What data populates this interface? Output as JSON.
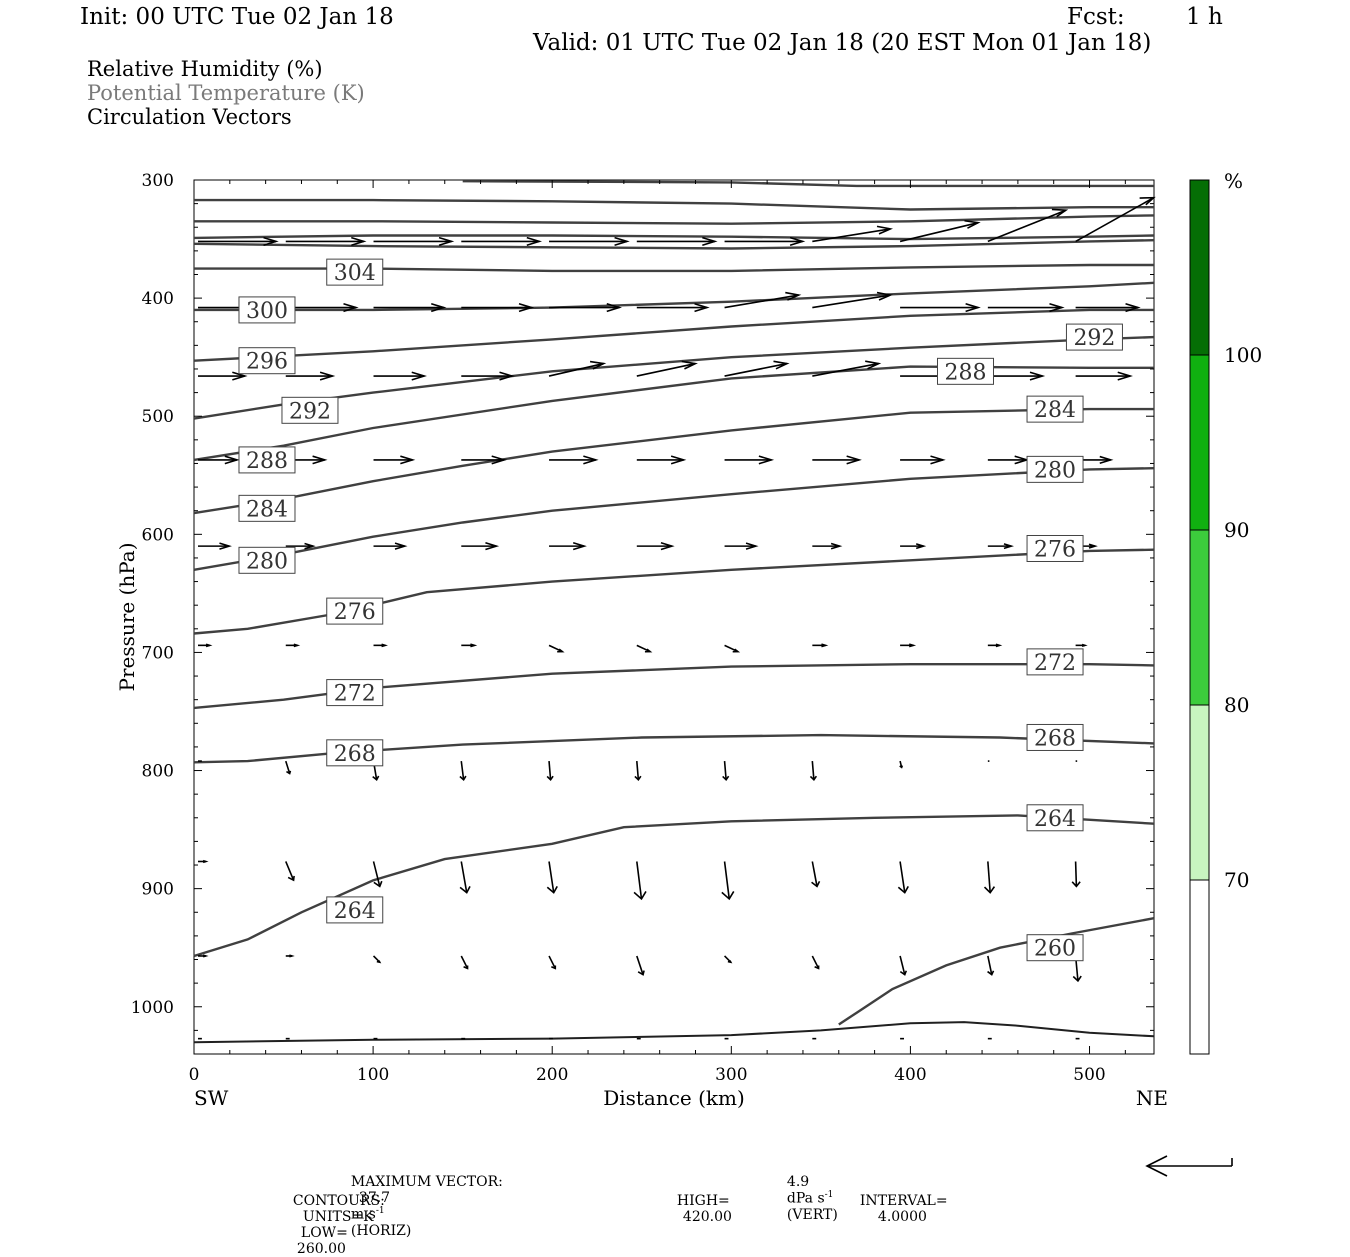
{
  "header": {
    "init": "Init: 00 UTC Tue 02 Jan 18",
    "fcst_label": "Fcst:",
    "fcst_value": "1 h",
    "valid": "Valid: 01 UTC Tue 02 Jan 18 (20 EST Mon 01 Jan 18)"
  },
  "legend": {
    "rh": "Relative Humidity (%)",
    "theta": "Potential Temperature (K)",
    "vectors": "Circulation Vectors"
  },
  "axes": {
    "ylabel": "Pressure (hPa)",
    "xlabel": "Distance (km)",
    "left_end": "SW",
    "right_end": "NE",
    "y_ticks": [
      "300",
      "400",
      "500",
      "600",
      "700",
      "800",
      "900",
      "1000"
    ],
    "x_ticks": [
      "0",
      "100",
      "200",
      "300",
      "400",
      "500"
    ]
  },
  "colorbar": {
    "unit": "%",
    "labels": [
      "100",
      "90",
      "80",
      "70"
    ],
    "colors": [
      "#ffffff",
      "#c8f5c0",
      "#3ccc3c",
      "#10b010",
      "#0a8c0a",
      "#056e05"
    ]
  },
  "footer": {
    "max_vector_label": "MAXIMUM VECTOR:",
    "max_vector_horiz_value": "37.7",
    "max_vector_horiz_unit": "m s",
    "max_vector_horiz_tail": "(HORIZ)",
    "max_vector_vert_value": "4.9",
    "max_vector_vert_unit": "dPa s",
    "max_vector_vert_tail": "(VERT)",
    "superscript": "-1",
    "contours_label": "CONTOURS:",
    "units": "UNITS=K",
    "low_label": "LOW=",
    "low": "260.00",
    "high_label": "HIGH=",
    "high": "420.00",
    "interval_label": "INTERVAL=",
    "interval": "4.0000"
  },
  "chart_data": {
    "type": "line",
    "subtype": "cross-section isentropes (hPa vs km)",
    "xlim": [
      0,
      536
    ],
    "ylim": [
      300,
      1040
    ],
    "y_scale": "linear, pressure increasing downward",
    "contour_labels": [
      "304",
      "300",
      "296",
      "292",
      "292",
      "288",
      "288",
      "284",
      "284",
      "280",
      "280",
      "276",
      "276",
      "272",
      "272",
      "268",
      "268",
      "264",
      "264",
      "260"
    ],
    "series": [
      {
        "name": "260",
        "x": [
          360,
          370,
          390,
          420,
          450,
          490,
          536
        ],
        "y": [
          1015,
          1005,
          985,
          965,
          950,
          938,
          925
        ]
      },
      {
        "name": "264",
        "x": [
          0,
          30,
          60,
          100,
          140,
          200,
          240,
          300,
          380,
          460,
          536
        ],
        "y": [
          957,
          943,
          920,
          893,
          875,
          862,
          848,
          843,
          840,
          838,
          845
        ]
      },
      {
        "name": "268",
        "x": [
          0,
          30,
          80,
          150,
          250,
          350,
          450,
          536
        ],
        "y": [
          793,
          792,
          785,
          778,
          772,
          770,
          772,
          777
        ]
      },
      {
        "name": "272",
        "x": [
          0,
          50,
          100,
          200,
          300,
          400,
          500,
          536
        ],
        "y": [
          747,
          740,
          730,
          718,
          712,
          710,
          710,
          711
        ]
      },
      {
        "name": "276",
        "x": [
          0,
          30,
          80,
          130,
          200,
          300,
          400,
          500,
          536
        ],
        "y": [
          684,
          680,
          667,
          649,
          640,
          630,
          622,
          614,
          613
        ]
      },
      {
        "name": "280",
        "x": [
          0,
          50,
          100,
          150,
          200,
          300,
          400,
          500,
          536
        ],
        "y": [
          630,
          617,
          602,
          590,
          580,
          566,
          553,
          545,
          544
        ]
      },
      {
        "name": "284",
        "x": [
          0,
          50,
          100,
          150,
          200,
          300,
          400,
          500,
          536
        ],
        "y": [
          582,
          570,
          555,
          542,
          530,
          512,
          497,
          494,
          494
        ]
      },
      {
        "name": "288",
        "x": [
          0,
          50,
          100,
          200,
          300,
          400,
          500,
          536
        ],
        "y": [
          537,
          525,
          510,
          487,
          468,
          458,
          459,
          459
        ]
      },
      {
        "name": "292",
        "x": [
          0,
          50,
          100,
          200,
          300,
          400,
          500,
          536
        ],
        "y": [
          502,
          490,
          480,
          462,
          450,
          442,
          435,
          433
        ]
      },
      {
        "name": "296",
        "x": [
          0,
          100,
          200,
          300,
          400,
          500,
          536
        ],
        "y": [
          453,
          445,
          435,
          424,
          415,
          410,
          410
        ]
      },
      {
        "name": "300",
        "x": [
          0,
          100,
          200,
          300,
          400,
          500,
          536
        ],
        "y": [
          410,
          410,
          408,
          403,
          396,
          390,
          387
        ]
      },
      {
        "name": "304",
        "x": [
          0,
          100,
          200,
          300,
          400,
          500,
          536
        ],
        "y": [
          375,
          375,
          377,
          377,
          374,
          372,
          372
        ]
      },
      {
        "name": "308",
        "x": [
          0,
          100,
          200,
          300,
          400,
          500,
          536
        ],
        "y": [
          354,
          356,
          357,
          358,
          356,
          352,
          351
        ]
      },
      {
        "name": "312",
        "x": [
          0,
          100,
          200,
          300,
          400,
          500,
          536
        ],
        "y": [
          349,
          347,
          347,
          348,
          350,
          348,
          347
        ]
      },
      {
        "name": "316",
        "x": [
          0,
          100,
          200,
          300,
          400,
          500,
          536
        ],
        "y": [
          335,
          335,
          336,
          337,
          335,
          331,
          330
        ]
      },
      {
        "name": "320",
        "x": [
          0,
          100,
          200,
          300,
          400,
          500,
          536
        ],
        "y": [
          317,
          317,
          318,
          320,
          325,
          323,
          323
        ]
      },
      {
        "name": "324",
        "x": [
          150,
          300,
          370,
          536
        ],
        "y": [
          301,
          302,
          305,
          305
        ]
      }
    ],
    "surface": {
      "x": [
        0,
        100,
        200,
        300,
        350,
        400,
        430,
        460,
        500,
        536
      ],
      "y": [
        1030,
        1028,
        1027,
        1024,
        1020,
        1014,
        1013,
        1016,
        1022,
        1025
      ]
    },
    "vector_rows": [
      {
        "p": 352,
        "u": [
          1,
          1,
          1,
          1,
          1,
          1,
          1,
          1,
          1,
          1,
          1
        ],
        "w": [
          0,
          0,
          0,
          0,
          0,
          0,
          0,
          -0.02,
          -0.03,
          -0.05,
          -0.07
        ]
      },
      {
        "p": 408,
        "u": [
          0.9,
          0.9,
          0.9,
          0.9,
          0.9,
          0.9,
          0.95,
          1,
          1,
          0.95,
          0.8
        ],
        "w": [
          0,
          0,
          0,
          0,
          0,
          0,
          -0.02,
          -0.02,
          0,
          0,
          0
        ]
      },
      {
        "p": 466,
        "u": [
          0.6,
          0.6,
          0.65,
          0.65,
          0.7,
          0.75,
          0.8,
          0.85,
          0.8,
          0.7,
          0.7
        ],
        "w": [
          0,
          0,
          0,
          0,
          -0.02,
          -0.02,
          -0.02,
          -0.02,
          0,
          0,
          0
        ]
      },
      {
        "p": 537,
        "u": [
          0.5,
          0.5,
          0.5,
          0.55,
          0.6,
          0.6,
          0.6,
          0.6,
          0.55,
          0.5,
          0.45
        ],
        "w": [
          0,
          0,
          0,
          0,
          0,
          0,
          0,
          0,
          0,
          0,
          0
        ]
      },
      {
        "p": 610,
        "u": [
          0.4,
          0.35,
          0.4,
          0.45,
          0.45,
          0.45,
          0.4,
          0.35,
          0.3,
          0.3,
          0.25
        ],
        "w": [
          0,
          0,
          0,
          0,
          0,
          0,
          0,
          0,
          0,
          0,
          0
        ]
      },
      {
        "p": 694,
        "u": [
          0.15,
          0.15,
          0.15,
          0.17,
          0.17,
          0.17,
          0.17,
          0.17,
          0.17,
          0.15,
          0.12
        ],
        "w": [
          0,
          0,
          0,
          0,
          0.01,
          0.01,
          0.01,
          0,
          0,
          0,
          0
        ]
      },
      {
        "p": 792,
        "u": [
          0.05,
          0.05,
          0.04,
          0.03,
          0.02,
          0.02,
          0.02,
          0.02,
          0.02,
          0.02,
          0.02
        ],
        "w": [
          0,
          0.02,
          0.03,
          0.03,
          0.03,
          0.03,
          0.03,
          0.03,
          0.01,
          0,
          0
        ]
      },
      {
        "p": 877,
        "u": [
          0.1,
          0.1,
          0.08,
          0.07,
          0.06,
          0.06,
          0.06,
          0.06,
          0.06,
          0.03,
          0.01
        ],
        "w": [
          0,
          0.03,
          0.04,
          0.05,
          0.05,
          0.06,
          0.06,
          0.04,
          0.05,
          0.05,
          0.04
        ]
      },
      {
        "p": 957,
        "u": [
          0.1,
          0.08,
          0.08,
          0.08,
          0.08,
          0.08,
          0.08,
          0.08,
          0.06,
          0.05,
          0.03
        ],
        "w": [
          0,
          0,
          0.01,
          0.02,
          0.02,
          0.03,
          0.01,
          0.02,
          0.03,
          0.03,
          0.04
        ]
      },
      {
        "p": 1027,
        "u": [
          0.05,
          0.05,
          0.05,
          0.05,
          0.05,
          0.05,
          0.05,
          0.05,
          0.05,
          0.05,
          0.05
        ],
        "w": [
          0,
          0,
          0,
          0,
          0,
          0,
          0,
          0,
          0,
          0,
          0
        ]
      }
    ],
    "vector_x": [
      0,
      49,
      98,
      147,
      196,
      245,
      294,
      343,
      392,
      441,
      490
    ],
    "label_positions": [
      {
        "text": "304",
        "x": 73,
        "p": 378
      },
      {
        "text": "300",
        "x": 24,
        "p": 410
      },
      {
        "text": "296",
        "x": 24,
        "p": 453
      },
      {
        "text": "292",
        "x": 48,
        "p": 495
      },
      {
        "text": "292",
        "x": 486,
        "p": 433
      },
      {
        "text": "288",
        "x": 24,
        "p": 537
      },
      {
        "text": "288",
        "x": 414,
        "p": 462
      },
      {
        "text": "284",
        "x": 24,
        "p": 578
      },
      {
        "text": "284",
        "x": 464,
        "p": 494
      },
      {
        "text": "280",
        "x": 24,
        "p": 622
      },
      {
        "text": "280",
        "x": 464,
        "p": 545
      },
      {
        "text": "276",
        "x": 73,
        "p": 665
      },
      {
        "text": "276",
        "x": 464,
        "p": 612
      },
      {
        "text": "272",
        "x": 73,
        "p": 734
      },
      {
        "text": "272",
        "x": 464,
        "p": 708
      },
      {
        "text": "268",
        "x": 73,
        "p": 785
      },
      {
        "text": "268",
        "x": 464,
        "p": 772
      },
      {
        "text": "264",
        "x": 73,
        "p": 918
      },
      {
        "text": "264",
        "x": 464,
        "p": 840
      },
      {
        "text": "260",
        "x": 464,
        "p": 950
      }
    ]
  }
}
